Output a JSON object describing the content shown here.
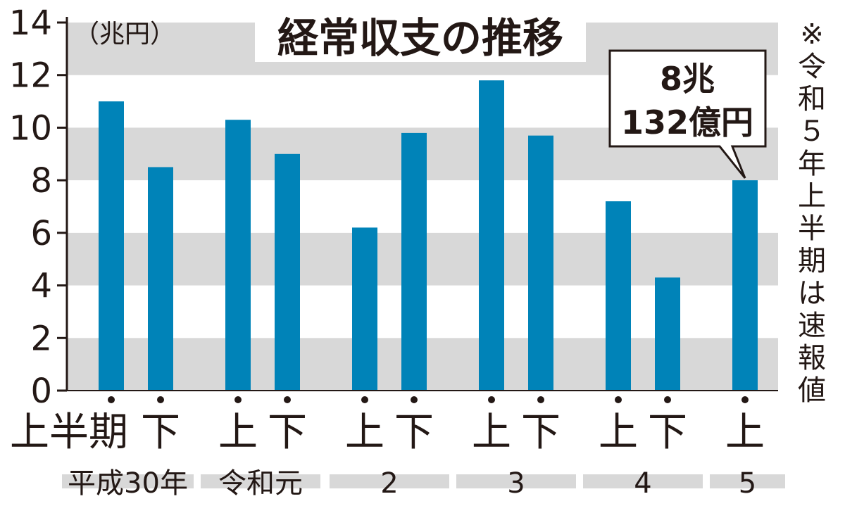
{
  "chart_data": {
    "type": "bar",
    "title": "経常収支の推移",
    "unit": "（兆円）",
    "ylim": [
      0,
      14
    ],
    "yticks": [
      "0",
      "2",
      "4",
      "6",
      "8",
      "10",
      "12",
      "14"
    ],
    "categories": [
      "上半期",
      "下",
      "上",
      "下",
      "上",
      "下",
      "上",
      "下",
      "上",
      "下",
      "上"
    ],
    "values": [
      11.0,
      8.5,
      10.3,
      9.0,
      6.2,
      9.8,
      11.8,
      9.7,
      7.2,
      4.3,
      8.0
    ],
    "year_groups": [
      {
        "label": "平成30年",
        "bars": [
          0,
          1
        ]
      },
      {
        "label": "令和元",
        "bars": [
          2,
          3
        ]
      },
      {
        "label": "2",
        "bars": [
          4,
          5
        ]
      },
      {
        "label": "3",
        "bars": [
          6,
          7
        ]
      },
      {
        "label": "4",
        "bars": [
          8,
          9
        ]
      },
      {
        "label": "5",
        "bars": [
          10
        ]
      }
    ],
    "callout": {
      "line1": "8兆",
      "line2": "132億円",
      "bar_index": 10
    },
    "note": "※令和５年上半期は速報値",
    "colors": {
      "bar": "#0083b8",
      "band": "#d8d8d8",
      "axis": "#231815"
    },
    "grid": "alternating-bands"
  }
}
